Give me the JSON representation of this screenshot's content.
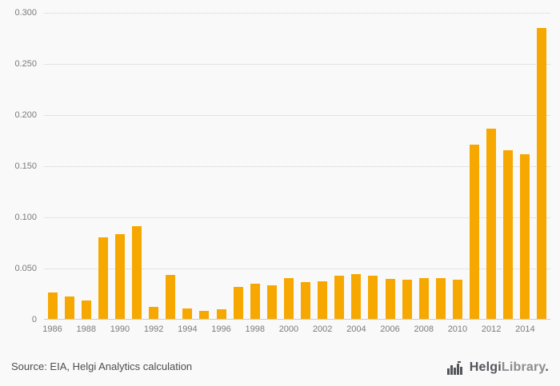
{
  "chart_data": {
    "type": "bar",
    "x": [
      1986,
      1987,
      1988,
      1989,
      1990,
      1991,
      1992,
      1993,
      1994,
      1995,
      1996,
      1997,
      1998,
      1999,
      2000,
      2001,
      2002,
      2003,
      2004,
      2005,
      2006,
      2007,
      2008,
      2009,
      2010,
      2011,
      2012,
      2013,
      2014,
      2015
    ],
    "values": [
      0.026,
      0.022,
      0.018,
      0.08,
      0.083,
      0.091,
      0.012,
      0.043,
      0.01,
      0.008,
      0.009,
      0.031,
      0.034,
      0.033,
      0.04,
      0.036,
      0.037,
      0.042,
      0.044,
      0.042,
      0.039,
      0.038,
      0.04,
      0.04,
      0.038,
      0.17,
      0.186,
      0.165,
      0.161,
      0.284
    ],
    "title": "",
    "xlabel": "",
    "ylabel": "",
    "ylim": [
      0,
      0.3
    ],
    "yticks": [
      0,
      0.05,
      0.1,
      0.15,
      0.2,
      0.25,
      0.3
    ],
    "ytick_labels": [
      "0",
      "0.050",
      "0.100",
      "0.150",
      "0.200",
      "0.250",
      "0.300"
    ],
    "xtick_years": [
      1986,
      1988,
      1990,
      1992,
      1994,
      1996,
      1998,
      2000,
      2002,
      2004,
      2006,
      2008,
      2010,
      2012,
      2014
    ],
    "grid": "horizontal-dotted",
    "legend": "none",
    "bar_color": "#f7a800"
  },
  "footer": {
    "source": "Source: EIA, Helgi Analytics calculation",
    "logo": {
      "brand_primary": "Helgi",
      "brand_secondary": "Library",
      "suffix": ".",
      "icon": "bar-chart-logo-icon",
      "icon_color": "#54555a",
      "dot_color": "#f7a800"
    }
  }
}
